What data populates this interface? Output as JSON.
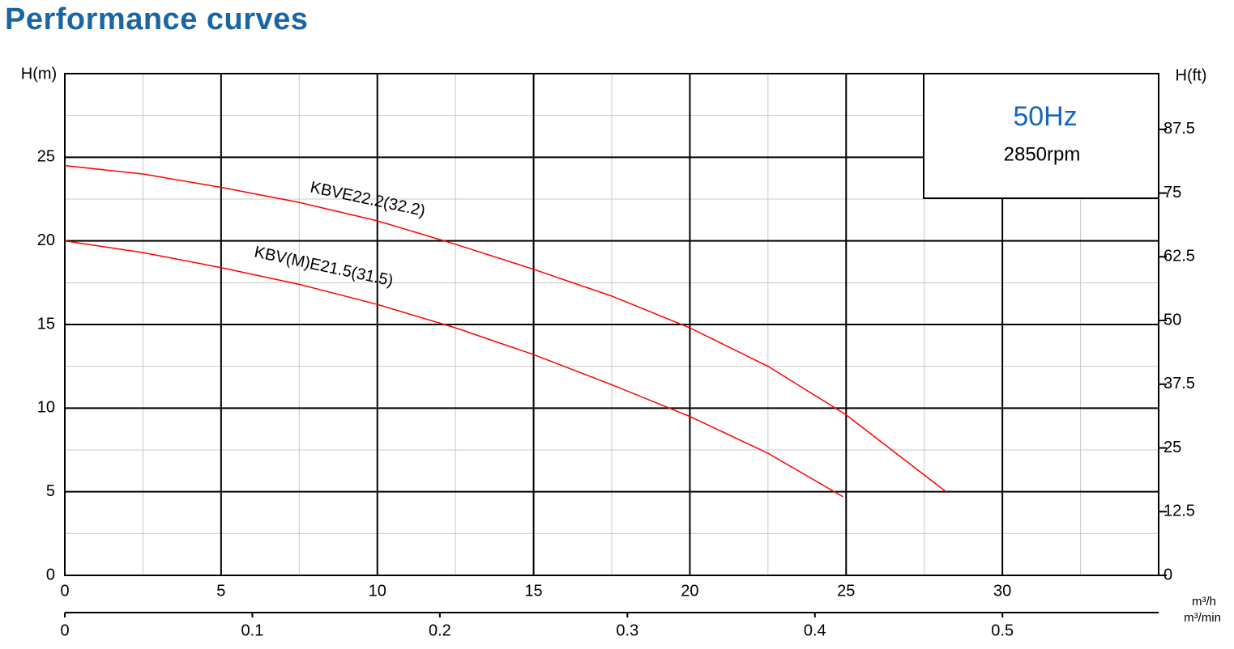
{
  "chart_data": {
    "type": "line",
    "title": "Performance curves",
    "xlim": [
      0,
      35
    ],
    "xticks": [
      0,
      5,
      10,
      15,
      20,
      25,
      30
    ],
    "xminor": [
      2.5,
      7.5,
      12.5,
      17.5,
      22.5,
      27.5,
      32.5
    ],
    "x2lim": [
      0,
      0.5833
    ],
    "x2ticks": [
      0,
      0.1,
      0.2,
      0.3,
      0.4,
      0.5
    ],
    "x2label": "m³/min",
    "xlabel": "m³/h",
    "ylim": [
      0,
      30
    ],
    "yticks": [
      0,
      5,
      10,
      15,
      20,
      25
    ],
    "yminor": [
      2.5,
      7.5,
      12.5,
      17.5,
      22.5,
      27.5
    ],
    "ylabel": "H(m)",
    "y2lim": [
      0,
      98.43
    ],
    "y2ticks": [
      0,
      12.5,
      25,
      37.5,
      50,
      62.5,
      75,
      87.5
    ],
    "y2label": "H(ft)",
    "grid": true,
    "annotations": [
      "50Hz",
      "2850rpm"
    ],
    "series": [
      {
        "name": "KBVE22.2(32.2)",
        "color": "#ff0000",
        "x": [
          0,
          2.5,
          5,
          7.5,
          10,
          12.5,
          15,
          17.5,
          20,
          22.5,
          25,
          27.5,
          28.2
        ],
        "values": [
          24.5,
          24.0,
          23.2,
          22.3,
          21.2,
          19.8,
          18.3,
          16.7,
          14.8,
          12.5,
          9.6,
          6.0,
          5.0
        ]
      },
      {
        "name": "KBV(M)E21.5(31.5)",
        "color": "#ff0000",
        "x": [
          0,
          2.5,
          5,
          7.5,
          10,
          12.5,
          15,
          17.5,
          20,
          22.5,
          24.9
        ],
        "values": [
          20.0,
          19.3,
          18.4,
          17.4,
          16.2,
          14.8,
          13.2,
          11.4,
          9.5,
          7.3,
          4.7
        ]
      }
    ]
  }
}
